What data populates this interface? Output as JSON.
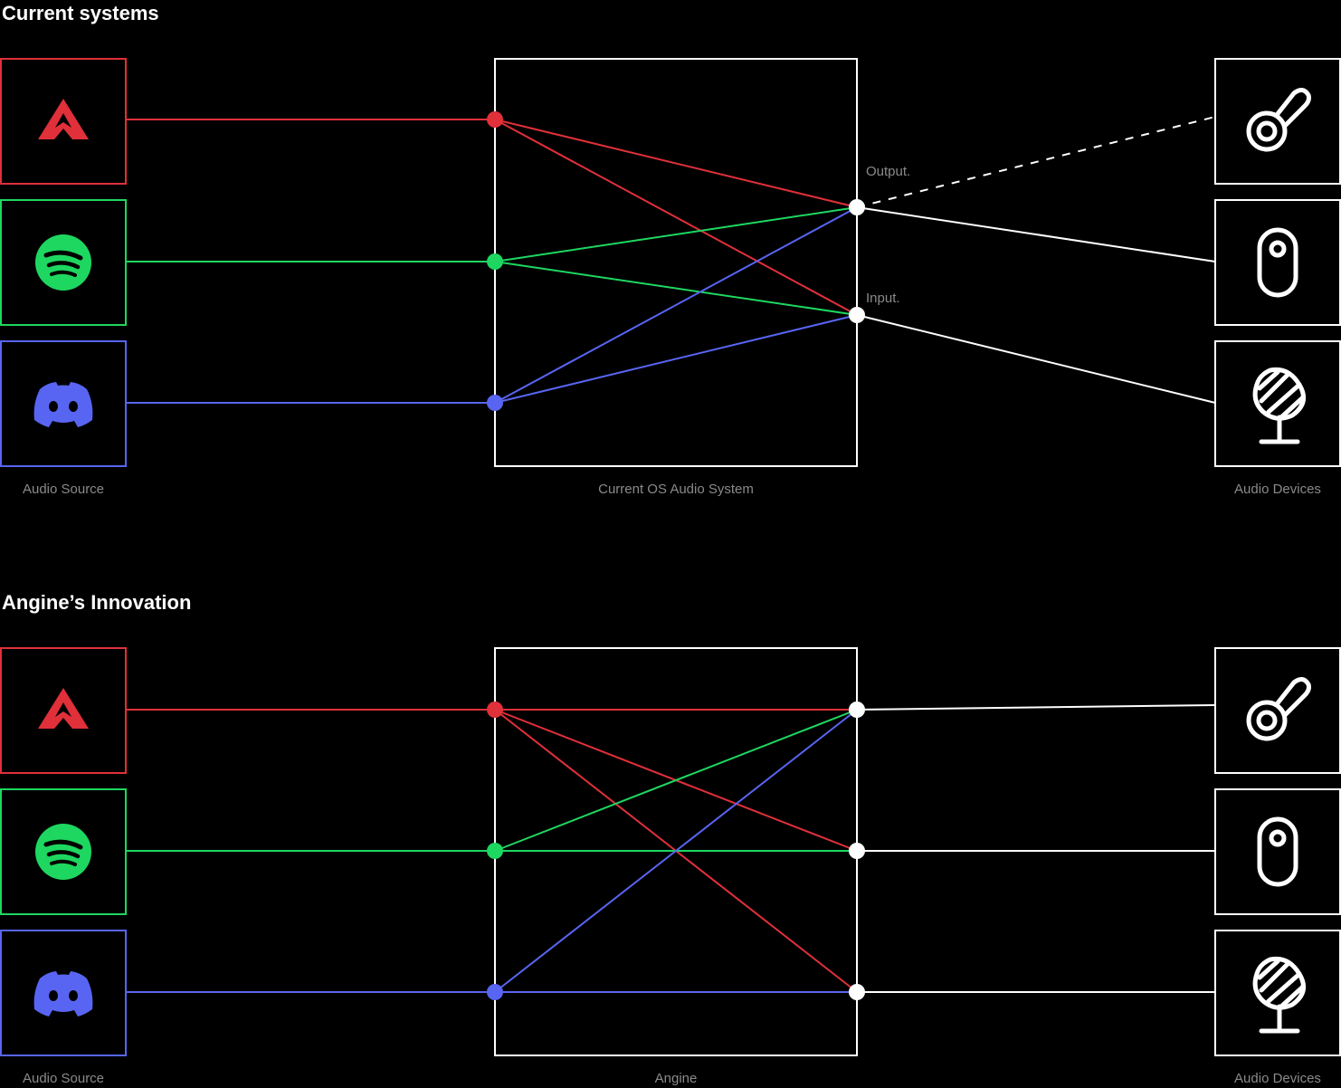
{
  "sections": [
    {
      "title": "Current systems",
      "source_label": "Audio Source",
      "center_label": "Current OS Audio System",
      "devices_label": "Audio Devices",
      "output_label": "Output.",
      "input_label": "Input."
    },
    {
      "title": "Angine’s Innovation",
      "source_label": "Audio Source",
      "center_label": "Angine",
      "devices_label": "Audio Devices"
    }
  ],
  "sources": [
    "apex-legends-logo",
    "spotify-logo",
    "discord-logo"
  ],
  "devices": [
    "headphone-icon",
    "speaker-icon",
    "microphone-icon"
  ],
  "colors": {
    "background": "#000000",
    "red": "#e0303a",
    "green": "#1ed760",
    "blue": "#5865f2",
    "white": "#ffffff",
    "label_gray": "#8a8a8a"
  }
}
